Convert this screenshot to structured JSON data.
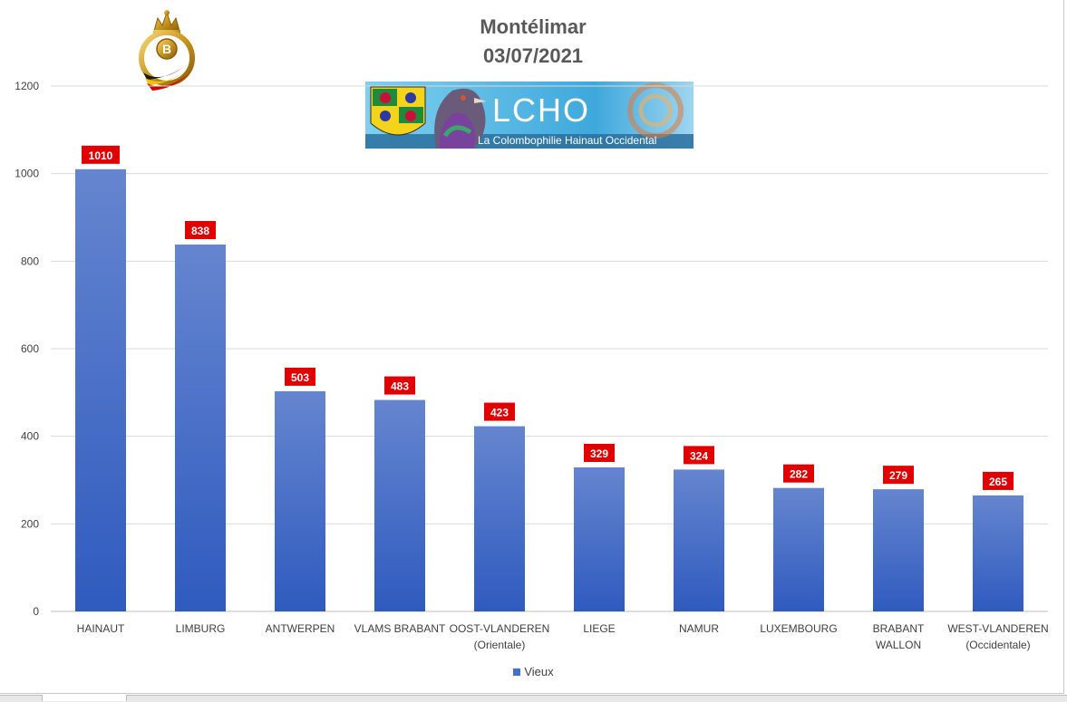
{
  "chart_data": {
    "type": "bar",
    "title": "Montélimar",
    "subtitle": "03/07/2021",
    "categories": [
      [
        "HAINAUT"
      ],
      [
        "LIMBURG"
      ],
      [
        "ANTWERPEN"
      ],
      [
        "VLAMS BRABANT"
      ],
      [
        "OOST-VLANDEREN",
        "(Orientale)"
      ],
      [
        "LIEGE"
      ],
      [
        "NAMUR"
      ],
      [
        "LUXEMBOURG"
      ],
      [
        "BRABANT",
        "WALLON"
      ],
      [
        "WEST-VLANDEREN",
        "(Occidentale)"
      ]
    ],
    "series": [
      {
        "name": "Vieux",
        "values": [
          1010,
          838,
          503,
          483,
          423,
          329,
          324,
          282,
          279,
          265
        ]
      }
    ],
    "ylim": [
      0,
      1200
    ],
    "yticks": [
      0,
      200,
      400,
      600,
      800,
      1000,
      1200
    ],
    "grid": true,
    "legend": "bottom",
    "xlabel": "",
    "ylabel": ""
  },
  "colors": {
    "bar_top": "#6585cf",
    "bar_bottom": "#2f5bbf",
    "data_label_bg": "#e00000",
    "data_label_text": "#ffffff",
    "grid": "#d9d9d9",
    "axis_text": "#404040",
    "legend_swatch": "#4472c4"
  },
  "logos": {
    "left": "crown-b-emblem",
    "banner": {
      "name": "lcho-banner",
      "text": "LCHO",
      "caption": "La Colombophilie Hainaut Occidental"
    }
  }
}
